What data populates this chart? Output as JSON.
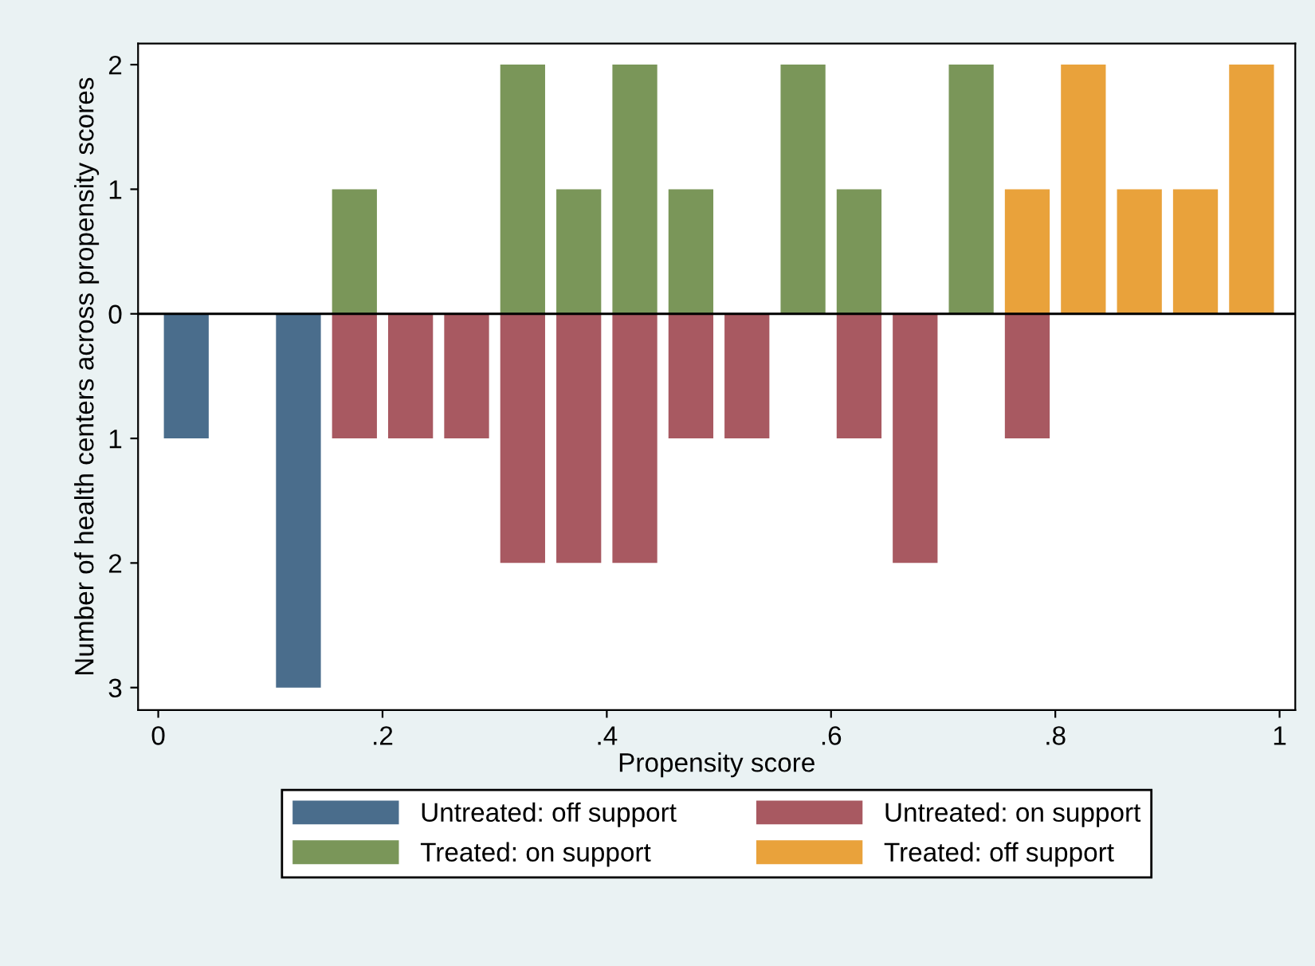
{
  "chart_data": {
    "type": "bar",
    "xlabel": "Propensity score",
    "ylabel": "Number of health centers across propensity scores",
    "series": [
      {
        "name": "Untreated: off support",
        "color": "#4a6d8c",
        "x": [
          0.025,
          0.125
        ],
        "values": [
          -1,
          -3
        ],
        "base": [
          0,
          0
        ]
      },
      {
        "name": "Untreated: on support",
        "color": "#a85961",
        "x": [
          0.175,
          0.225,
          0.275,
          0.325,
          0.375,
          0.425,
          0.475,
          0.525,
          0.625,
          0.675,
          0.775
        ],
        "values": [
          -1,
          -1,
          -1,
          -2,
          -2,
          -2,
          -1,
          -1,
          -1,
          -2,
          -1
        ],
        "base": [
          0,
          0,
          0,
          0,
          0,
          0,
          0,
          0,
          0,
          0,
          0
        ]
      },
      {
        "name": "Treated: on support",
        "color": "#7a9659",
        "x": [
          0.175,
          0.325,
          0.375,
          0.425,
          0.475,
          0.575,
          0.625,
          0.725
        ],
        "values": [
          1,
          2,
          1,
          2,
          1,
          2,
          1,
          2
        ],
        "base": [
          0,
          0,
          0,
          0,
          0,
          0,
          0,
          0
        ]
      },
      {
        "name": "Treated: off support",
        "color": "#e9a23b",
        "x": [
          0.775,
          0.825,
          0.875,
          0.925,
          0.975
        ],
        "values": [
          1,
          2,
          1,
          1,
          2
        ],
        "base": [
          0,
          0,
          0,
          0,
          0
        ]
      }
    ],
    "xlim": [
      -0.018,
      1.014
    ],
    "xticks": [
      {
        "value": 0,
        "label": "0"
      },
      {
        "value": 0.2,
        "label": ".2"
      },
      {
        "value": 0.4,
        "label": ".4"
      },
      {
        "value": 0.6,
        "label": ".6"
      },
      {
        "value": 0.8,
        "label": ".8"
      },
      {
        "value": 1,
        "label": "1"
      }
    ],
    "ylim": [
      -3.18,
      2.17
    ],
    "yticks": [
      {
        "value": -3,
        "label": "3"
      },
      {
        "value": -2,
        "label": "2"
      },
      {
        "value": -1,
        "label": "1"
      },
      0,
      1,
      2
    ],
    "ref_lines": [
      {
        "axis": "y",
        "value": 0,
        "color": "#000000"
      }
    ],
    "grid": false,
    "legend": "bottom"
  }
}
